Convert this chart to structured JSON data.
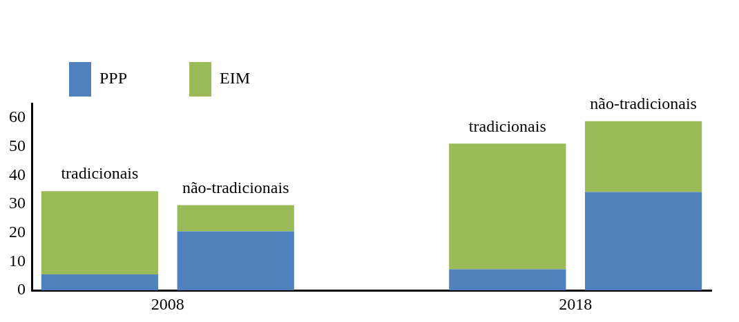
{
  "chart_data": {
    "type": "bar",
    "stacked": true,
    "categories": [
      "tradicionais",
      "não-tradicionais",
      null,
      "tradicionais",
      "não-tradicionais"
    ],
    "series": [
      {
        "name": "PPP",
        "color": "#4f81bd",
        "values": [
          5.5,
          20.5,
          null,
          7.3,
          34.2
        ]
      },
      {
        "name": "EIM",
        "color": "#9bbb59",
        "values": [
          29,
          9.1,
          null,
          43.7,
          24.6
        ]
      }
    ],
    "annotations": [
      "2008",
      "2018"
    ],
    "ylim": [
      0,
      65
    ],
    "yticks": [
      0,
      10,
      20,
      30,
      40,
      50,
      60
    ],
    "grid": false,
    "legend": "top left",
    "tick_labels": "y"
  }
}
